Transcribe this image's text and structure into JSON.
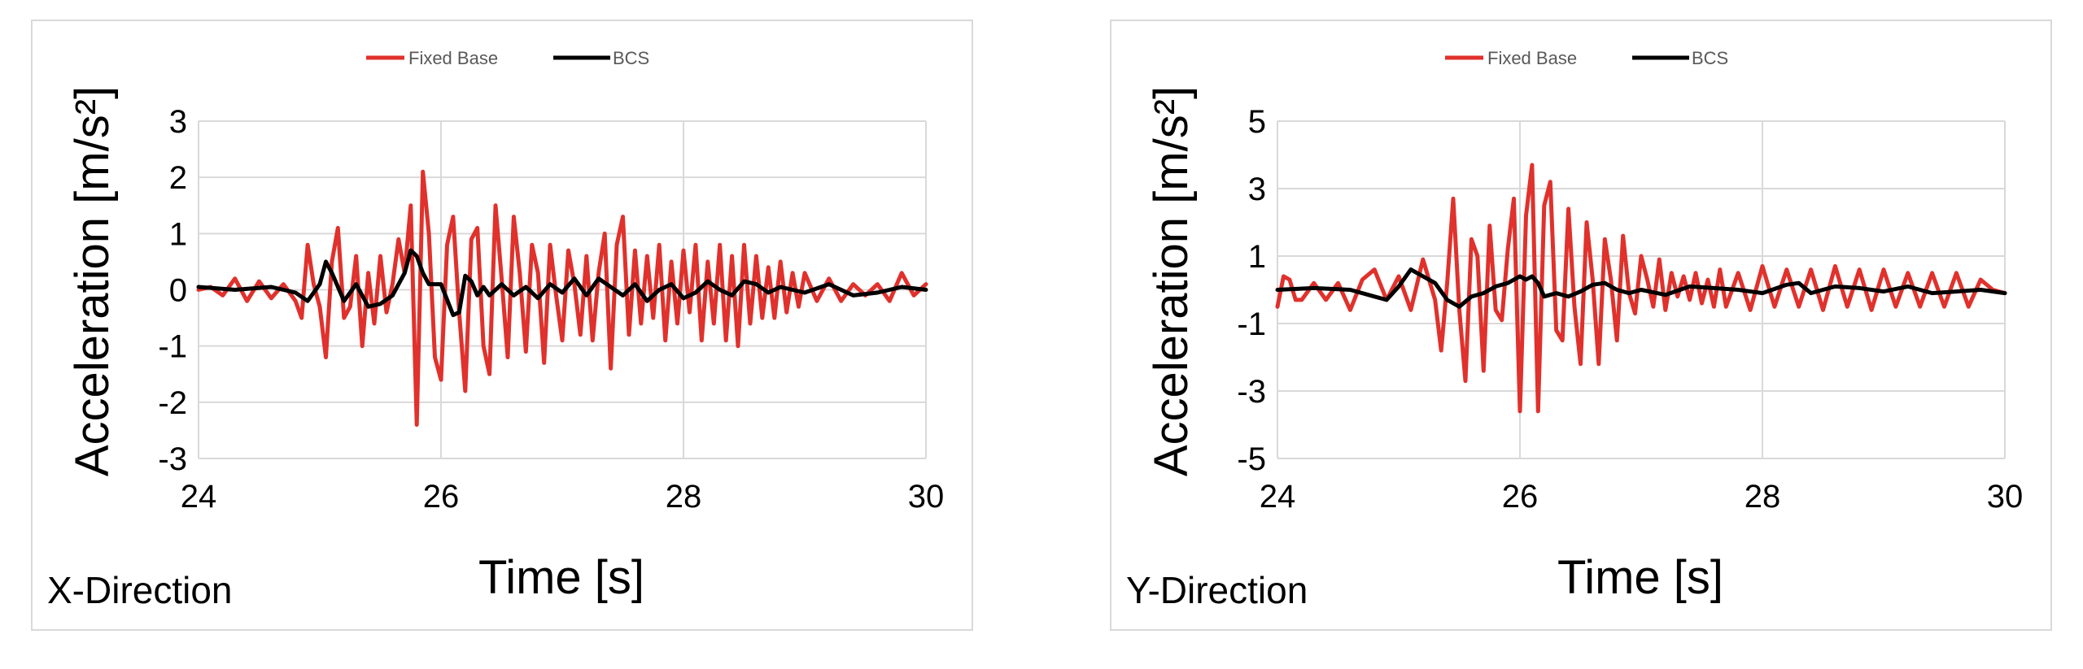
{
  "chart_data": [
    {
      "type": "line",
      "xlabel": "Time [s]",
      "ylabel": "Acceleration [m/s²]",
      "panel_label": "X-Direction",
      "xlim": [
        24,
        30
      ],
      "ylim": [
        -3,
        3
      ],
      "xticks": [
        24,
        26,
        28,
        30
      ],
      "yticks": [
        -3,
        -2,
        -1,
        0,
        1,
        2,
        3
      ],
      "xtick_labels": [
        "24",
        "26",
        "28",
        "30"
      ],
      "ytick_labels": [
        "-3",
        "-2",
        "-1",
        "0",
        "1",
        "2",
        "3"
      ],
      "grid": true,
      "legend_position": "top-center",
      "series": [
        {
          "name": "Fixed Base",
          "color": "#e0312c",
          "x": [
            24.0,
            24.1,
            24.2,
            24.3,
            24.4,
            24.5,
            24.6,
            24.7,
            24.8,
            24.85,
            24.9,
            24.95,
            25.0,
            25.05,
            25.1,
            25.15,
            25.2,
            25.25,
            25.3,
            25.35,
            25.4,
            25.45,
            25.5,
            25.55,
            25.6,
            25.65,
            25.7,
            25.75,
            25.8,
            25.85,
            25.9,
            25.95,
            26.0,
            26.05,
            26.1,
            26.15,
            26.2,
            26.25,
            26.3,
            26.35,
            26.4,
            26.45,
            26.5,
            26.55,
            26.6,
            26.65,
            26.7,
            26.75,
            26.8,
            26.85,
            26.9,
            26.95,
            27.0,
            27.05,
            27.1,
            27.15,
            27.2,
            27.25,
            27.3,
            27.35,
            27.4,
            27.45,
            27.5,
            27.55,
            27.6,
            27.65,
            27.7,
            27.75,
            27.8,
            27.85,
            27.9,
            27.95,
            28.0,
            28.05,
            28.1,
            28.15,
            28.2,
            28.25,
            28.3,
            28.35,
            28.4,
            28.45,
            28.5,
            28.55,
            28.6,
            28.65,
            28.7,
            28.75,
            28.8,
            28.85,
            28.9,
            28.95,
            29.0,
            29.1,
            29.2,
            29.3,
            29.4,
            29.5,
            29.6,
            29.7,
            29.8,
            29.9,
            30.0
          ],
          "y": [
            0.0,
            0.05,
            -0.1,
            0.2,
            -0.2,
            0.15,
            -0.15,
            0.1,
            -0.2,
            -0.5,
            0.8,
            0.1,
            -0.3,
            -1.2,
            0.5,
            1.1,
            -0.5,
            -0.3,
            0.6,
            -1.0,
            0.3,
            -0.6,
            0.6,
            -0.4,
            0.1,
            0.9,
            0.3,
            1.5,
            -2.4,
            2.1,
            1.0,
            -1.2,
            -1.6,
            0.8,
            1.3,
            -0.4,
            -1.8,
            0.9,
            1.1,
            -1.0,
            -1.5,
            1.5,
            0.2,
            -1.2,
            1.3,
            0.3,
            -1.1,
            0.8,
            0.3,
            -1.3,
            0.8,
            -0.1,
            -0.9,
            0.7,
            0.1,
            -0.8,
            0.6,
            -0.9,
            0.3,
            1.0,
            -1.4,
            0.8,
            1.3,
            -0.8,
            0.7,
            -0.6,
            0.6,
            -0.5,
            0.8,
            -0.9,
            0.5,
            -0.6,
            0.7,
            -0.4,
            0.8,
            -0.9,
            0.5,
            -0.6,
            0.8,
            -0.9,
            0.6,
            -1.0,
            0.8,
            -0.6,
            0.6,
            -0.5,
            0.4,
            -0.5,
            0.5,
            -0.4,
            0.3,
            -0.3,
            0.3,
            -0.2,
            0.2,
            -0.2,
            0.1,
            -0.1,
            0.1,
            -0.2,
            0.3,
            -0.1,
            0.1
          ]
        },
        {
          "name": "BCS",
          "color": "#000000",
          "x": [
            24.0,
            24.3,
            24.6,
            24.8,
            24.9,
            25.0,
            25.05,
            25.1,
            25.2,
            25.3,
            25.4,
            25.5,
            25.6,
            25.7,
            25.75,
            25.8,
            25.85,
            25.9,
            26.0,
            26.1,
            26.15,
            26.2,
            26.25,
            26.3,
            26.35,
            26.4,
            26.5,
            26.6,
            26.7,
            26.8,
            26.9,
            27.0,
            27.1,
            27.2,
            27.3,
            27.4,
            27.5,
            27.6,
            27.7,
            27.8,
            27.9,
            28.0,
            28.1,
            28.2,
            28.3,
            28.4,
            28.5,
            28.6,
            28.7,
            28.8,
            28.9,
            29.0,
            29.2,
            29.4,
            29.6,
            29.8,
            30.0
          ],
          "y": [
            0.05,
            0.0,
            0.05,
            -0.05,
            -0.2,
            0.1,
            0.5,
            0.3,
            -0.2,
            0.1,
            -0.3,
            -0.25,
            -0.1,
            0.3,
            0.7,
            0.6,
            0.3,
            0.1,
            0.1,
            -0.45,
            -0.4,
            0.25,
            0.15,
            -0.1,
            0.05,
            -0.1,
            0.1,
            -0.1,
            0.05,
            -0.15,
            0.1,
            -0.05,
            0.2,
            -0.1,
            0.2,
            0.05,
            -0.1,
            0.1,
            -0.2,
            0.0,
            0.1,
            -0.15,
            -0.05,
            0.15,
            0.0,
            -0.1,
            0.15,
            0.1,
            -0.05,
            0.05,
            0.0,
            -0.05,
            0.1,
            -0.1,
            -0.05,
            0.05,
            0.0
          ]
        }
      ]
    },
    {
      "type": "line",
      "xlabel": "Time [s]",
      "ylabel": "Acceleration [m/s²]",
      "panel_label": "Y-Direction",
      "xlim": [
        24,
        30
      ],
      "ylim": [
        -5,
        5
      ],
      "xticks": [
        24,
        26,
        28,
        30
      ],
      "yticks": [
        -5,
        -3,
        -1,
        1,
        3,
        5
      ],
      "xtick_labels": [
        "24",
        "26",
        "28",
        "30"
      ],
      "ytick_labels": [
        "-5",
        "-3",
        "-1",
        "1",
        "3",
        "5"
      ],
      "grid": true,
      "legend_position": "top-center",
      "series": [
        {
          "name": "Fixed Base",
          "color": "#e0312c",
          "x": [
            24.0,
            24.05,
            24.1,
            24.15,
            24.2,
            24.3,
            24.4,
            24.5,
            24.6,
            24.7,
            24.8,
            24.9,
            25.0,
            25.1,
            25.2,
            25.3,
            25.35,
            25.4,
            25.45,
            25.5,
            25.55,
            25.6,
            25.65,
            25.7,
            25.75,
            25.8,
            25.85,
            25.9,
            25.95,
            26.0,
            26.05,
            26.1,
            26.15,
            26.2,
            26.25,
            26.3,
            26.35,
            26.4,
            26.45,
            26.5,
            26.55,
            26.6,
            26.65,
            26.7,
            26.75,
            26.8,
            26.85,
            26.9,
            26.95,
            27.0,
            27.05,
            27.1,
            27.15,
            27.2,
            27.25,
            27.3,
            27.35,
            27.4,
            27.45,
            27.5,
            27.55,
            27.6,
            27.65,
            27.7,
            27.8,
            27.9,
            28.0,
            28.1,
            28.2,
            28.3,
            28.4,
            28.5,
            28.6,
            28.7,
            28.8,
            28.9,
            29.0,
            29.1,
            29.2,
            29.3,
            29.4,
            29.5,
            29.6,
            29.7,
            29.8,
            29.9,
            30.0
          ],
          "y": [
            -0.5,
            0.4,
            0.3,
            -0.3,
            -0.3,
            0.2,
            -0.3,
            0.2,
            -0.6,
            0.3,
            0.6,
            -0.3,
            0.4,
            -0.6,
            0.9,
            -0.3,
            -1.8,
            0.2,
            2.7,
            -0.6,
            -2.7,
            1.5,
            1.0,
            -2.4,
            1.9,
            -0.6,
            -0.9,
            1.2,
            2.7,
            -3.6,
            2.2,
            3.7,
            -3.6,
            2.5,
            3.2,
            -1.2,
            -1.5,
            2.4,
            -0.5,
            -2.2,
            2.0,
            0.3,
            -2.2,
            1.5,
            0.3,
            -1.5,
            1.6,
            -0.1,
            -0.7,
            1.0,
            0.3,
            -0.5,
            0.9,
            -0.6,
            0.5,
            -0.2,
            0.4,
            -0.3,
            0.5,
            -0.4,
            0.3,
            -0.5,
            0.6,
            -0.5,
            0.5,
            -0.6,
            0.7,
            -0.5,
            0.6,
            -0.5,
            0.6,
            -0.6,
            0.7,
            -0.5,
            0.6,
            -0.6,
            0.6,
            -0.5,
            0.5,
            -0.5,
            0.5,
            -0.5,
            0.5,
            -0.5,
            0.3,
            0.0,
            -0.1
          ]
        },
        {
          "name": "BCS",
          "color": "#000000",
          "x": [
            24.0,
            24.3,
            24.6,
            24.8,
            24.9,
            25.0,
            25.1,
            25.2,
            25.3,
            25.4,
            25.5,
            25.6,
            25.7,
            25.8,
            25.9,
            26.0,
            26.05,
            26.1,
            26.15,
            26.2,
            26.3,
            26.4,
            26.5,
            26.6,
            26.7,
            26.8,
            26.9,
            27.0,
            27.2,
            27.4,
            27.6,
            27.8,
            28.0,
            28.2,
            28.3,
            28.4,
            28.6,
            28.8,
            29.0,
            29.2,
            29.4,
            29.6,
            29.8,
            30.0
          ],
          "y": [
            0.0,
            0.05,
            0.0,
            -0.2,
            -0.3,
            0.1,
            0.6,
            0.4,
            0.2,
            -0.3,
            -0.5,
            -0.2,
            -0.1,
            0.1,
            0.2,
            0.4,
            0.3,
            0.4,
            0.2,
            -0.2,
            -0.1,
            -0.2,
            -0.05,
            0.15,
            0.2,
            0.0,
            -0.1,
            0.0,
            -0.15,
            0.1,
            0.05,
            0.0,
            -0.1,
            0.15,
            0.2,
            -0.1,
            0.1,
            0.05,
            -0.05,
            0.1,
            -0.1,
            -0.05,
            0.0,
            -0.1
          ]
        }
      ]
    }
  ]
}
